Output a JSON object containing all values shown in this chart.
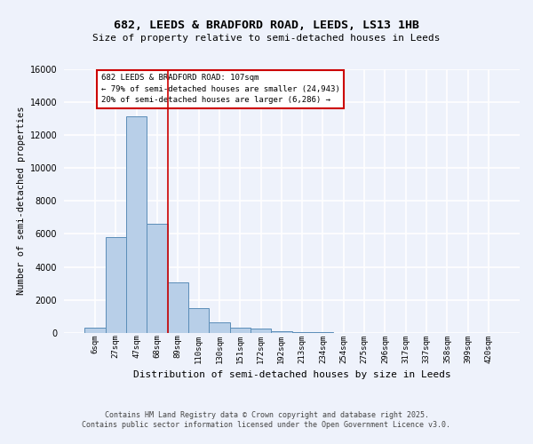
{
  "title_line1": "682, LEEDS & BRADFORD ROAD, LEEDS, LS13 1HB",
  "title_line2": "Size of property relative to semi-detached houses in Leeds",
  "xlabel": "Distribution of semi-detached houses by size in Leeds",
  "ylabel": "Number of semi-detached properties",
  "categories": [
    "6sqm",
    "27sqm",
    "47sqm",
    "68sqm",
    "89sqm",
    "110sqm",
    "130sqm",
    "151sqm",
    "172sqm",
    "192sqm",
    "213sqm",
    "234sqm",
    "254sqm",
    "275sqm",
    "296sqm",
    "317sqm",
    "337sqm",
    "358sqm",
    "399sqm",
    "420sqm"
  ],
  "values": [
    310,
    5800,
    13100,
    6600,
    3050,
    1480,
    650,
    310,
    270,
    125,
    75,
    55,
    0,
    0,
    0,
    0,
    0,
    0,
    0,
    0
  ],
  "bar_color": "#b8cfe8",
  "bar_edge_color": "#5b8db8",
  "vline_index": 4,
  "vline_color": "#cc0000",
  "annotation_title": "682 LEEDS & BRADFORD ROAD: 107sqm",
  "annotation_line2": "← 79% of semi-detached houses are smaller (24,943)",
  "annotation_line3": "20% of semi-detached houses are larger (6,286) →",
  "annotation_box_color": "#cc0000",
  "ylim": [
    0,
    16000
  ],
  "yticks": [
    0,
    2000,
    4000,
    6000,
    8000,
    10000,
    12000,
    14000,
    16000
  ],
  "footer_line1": "Contains HM Land Registry data © Crown copyright and database right 2025.",
  "footer_line2": "Contains public sector information licensed under the Open Government Licence v3.0.",
  "bg_color": "#eef2fb",
  "plot_bg_color": "#eef2fb",
  "grid_color": "#ffffff"
}
